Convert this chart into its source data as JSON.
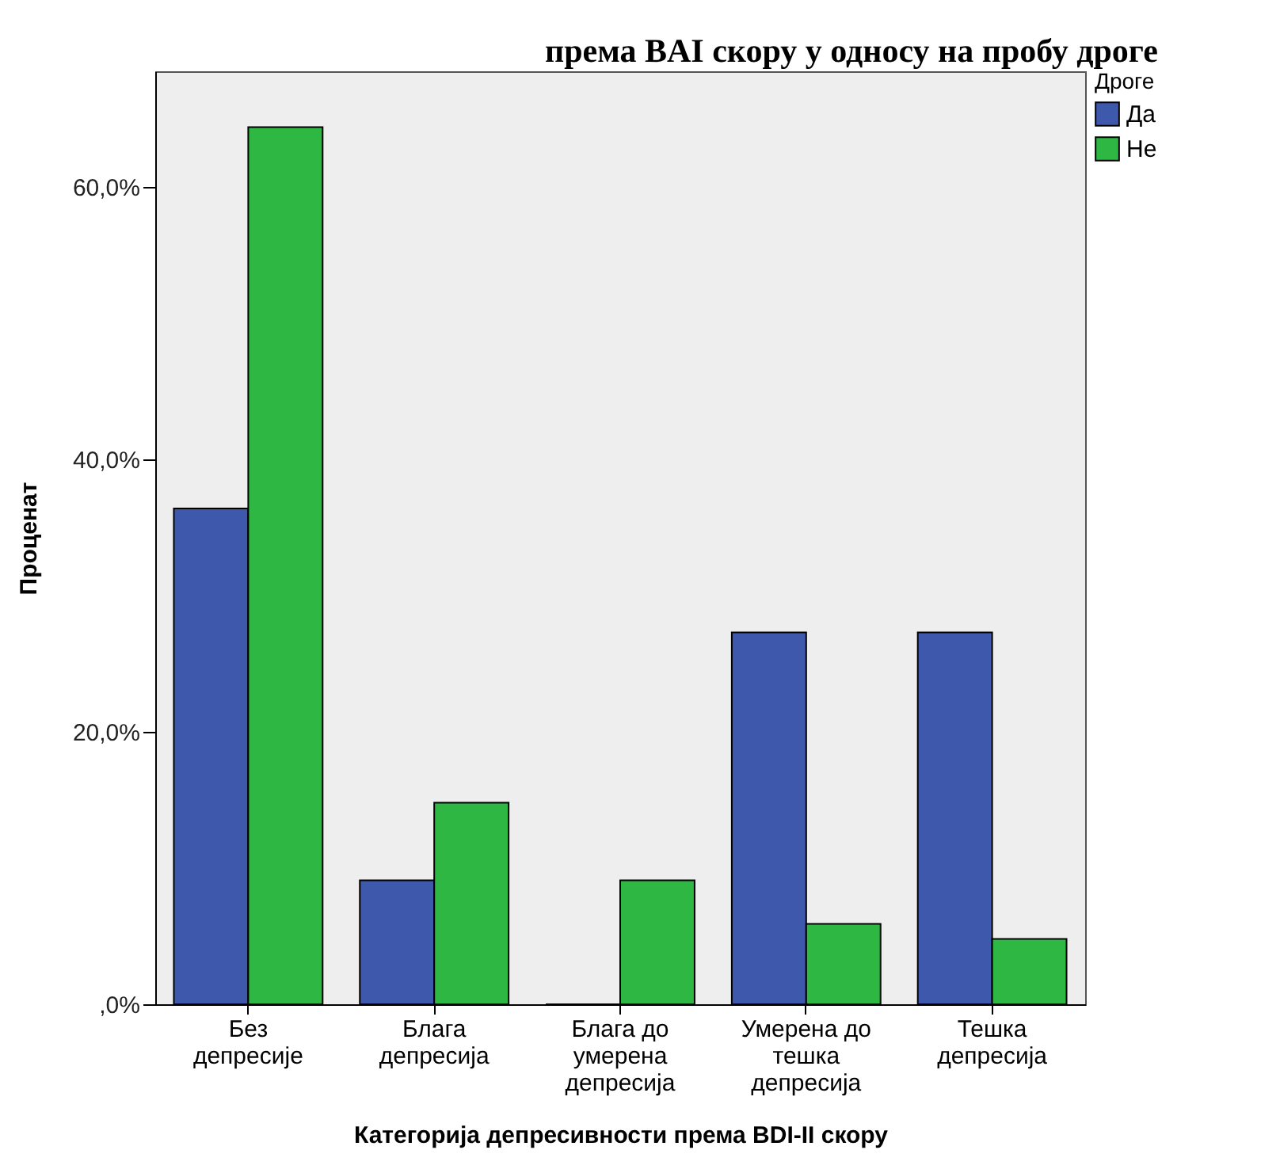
{
  "chart_data": {
    "type": "bar",
    "title": "према BAI скору у односу на пробу дроге",
    "xlabel": "Категорија депресивности према BDI-II скору",
    "ylabel": "Проценат",
    "legend_title": "Дроге",
    "legend": "top right",
    "grid": false,
    "categories": [
      "Без депресије",
      "Блага депресија",
      "Блага до умерена депресија",
      "Умерена до тешка депресија",
      "Тешка депресија"
    ],
    "series": [
      {
        "name": "Да",
        "color": "#3e58ac",
        "values": [
          36.4,
          9.1,
          0,
          27.3,
          27.3
        ]
      },
      {
        "name": "Не",
        "color": "#2fb744",
        "values": [
          64.4,
          14.8,
          9.1,
          5.9,
          4.8
        ]
      }
    ],
    "ylim": [
      0,
      68.5
    ],
    "yticks": [
      {
        "value": 0,
        "label": ",0%"
      },
      {
        "value": 20,
        "label": "20,0%"
      },
      {
        "value": 40,
        "label": "40,0%"
      },
      {
        "value": 60,
        "label": "60,0%"
      }
    ]
  }
}
